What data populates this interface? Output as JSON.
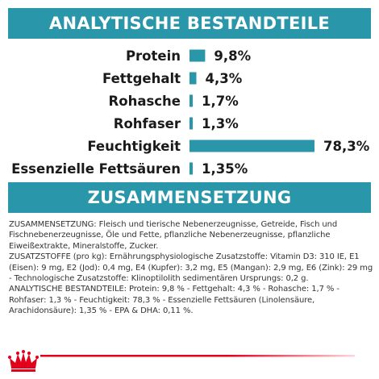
{
  "header": {
    "title": "ANALYTISCHE BESTANDTEILE"
  },
  "chart_data": {
    "type": "bar",
    "orientation": "horizontal",
    "title": "",
    "xlabel": "",
    "ylabel": "",
    "categories": [
      "Protein",
      "Fettgehalt",
      "Rohasche",
      "Rohfaser",
      "Feuchtigkeit",
      "Essenzielle Fettsäuren"
    ],
    "values": [
      9.8,
      4.3,
      1.7,
      1.3,
      78.3,
      1.35
    ],
    "value_labels": [
      "9,8%",
      "4,3%",
      "1,7%",
      "1,3%",
      "78,3%",
      "1,35%"
    ],
    "xlim": [
      0,
      78.3
    ],
    "grid": false,
    "legend": "none",
    "bar_color": "#2a96a9"
  },
  "composition": {
    "title": "ZUSAMMENSETZUNG",
    "paragraphs": [
      "ZUSAMMENSETZUNG: Fleisch und tierische Nebenerzeugnisse, Getreide, Fisch und Fischnebenerzeugnisse, Öle und Fette, pflanzliche Nebenerzeugnisse, pflanzliche Eiweißextrakte, Mineralstoffe, Zucker.",
      "ZUSATZSTOFFE (pro kg): Ernährungsphysiologische Zusatzstoffe: Vitamin D3: 310 IE, E1 (Eisen): 9 mg, E2 (Jod): 0,4 mg, E4 (Kupfer): 3,2 mg, E5 (Mangan): 2,9 mg, E6 (Zink): 29 mg - Technologische Zusatzstoffe: Klinoptilolith sedimentären Ursprungs: 0,2 g.",
      "ANALYTISCHE BESTANDTEILE: Protein: 9,8 % - Fettgehalt: 4,3 % - Rohasche: 1,7 % - Rohfaser: 1,3 % - Feuchtigkeit: 78,3 % - Essenzielle Fettsäuren (Linolensäure, Arachidonsäure): 1,35 % - EPA & DHA: 0,11 %."
    ]
  },
  "footer": {
    "logo": "royal-canin-crown-logo",
    "stripe_color": "#e2001a"
  },
  "colors": {
    "accent": "#2a96a9",
    "text": "#1a1a1a",
    "brand_red": "#e2001a"
  }
}
